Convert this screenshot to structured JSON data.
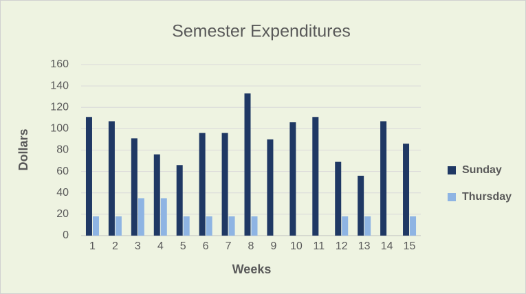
{
  "chart_data": {
    "type": "bar",
    "title": "Semester Expenditures",
    "x_label": "Weeks",
    "y_label": "Dollars",
    "categories": [
      "1",
      "2",
      "3",
      "4",
      "5",
      "6",
      "7",
      "8",
      "9",
      "10",
      "11",
      "12",
      "13",
      "14",
      "15"
    ],
    "series": [
      {
        "name": "Sunday",
        "color": "#1f3864",
        "values": [
          111,
          107,
          91,
          76,
          66,
          96,
          96,
          133,
          90,
          106,
          111,
          69,
          56,
          107,
          86
        ]
      },
      {
        "name": "Thursday",
        "color": "#8eb4e3",
        "values": [
          18,
          18,
          35,
          35,
          18,
          18,
          18,
          18,
          0,
          0,
          0,
          18,
          18,
          0,
          18
        ]
      }
    ],
    "ylim": [
      0,
      160
    ],
    "yticks": [
      0,
      20,
      40,
      60,
      80,
      100,
      120,
      140,
      160
    ],
    "grid": true,
    "legend": "right"
  }
}
